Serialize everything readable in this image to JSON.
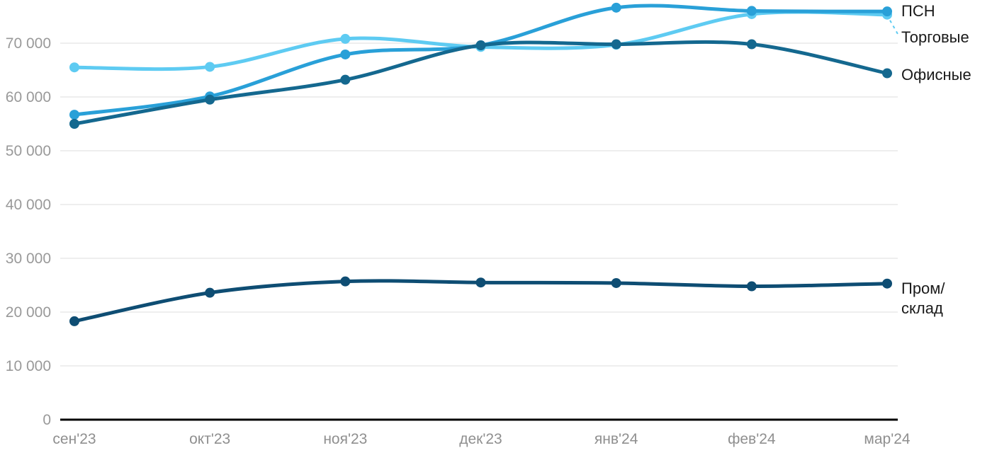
{
  "chart_data": {
    "type": "line",
    "title": "",
    "xlabel": "",
    "ylabel": "",
    "categories": [
      "сен'23",
      "окт'23",
      "ноя'23",
      "дек'23",
      "янв'24",
      "фев'24",
      "мар'24"
    ],
    "series": [
      {
        "name": "ПСН",
        "color": "#29a0d8",
        "legend_lines": [
          "ПСН"
        ],
        "values": [
          56700,
          60100,
          67900,
          69600,
          76600,
          76000,
          75900
        ]
      },
      {
        "name": "Торговые",
        "color": "#5ecbf2",
        "legend_lines": [
          "Торговые"
        ],
        "values": [
          65500,
          65600,
          70800,
          69300,
          69700,
          75400,
          75300
        ]
      },
      {
        "name": "Офисные",
        "color": "#14688f",
        "legend_lines": [
          "Офисные"
        ],
        "values": [
          55000,
          59500,
          63200,
          69600,
          69800,
          69800,
          64400
        ]
      },
      {
        "name": "Пром/склад",
        "color": "#0e4d73",
        "legend_lines": [
          "Пром/",
          "склад"
        ],
        "values": [
          18300,
          23600,
          25700,
          25500,
          25400,
          24800,
          25300
        ]
      }
    ],
    "yticks": {
      "values": [
        0,
        10000,
        20000,
        30000,
        40000,
        50000,
        60000,
        70000
      ],
      "labels": [
        "0",
        "10 000",
        "20 000",
        "30 000",
        "40 000",
        "50 000",
        "60 000",
        "70 000"
      ]
    },
    "ylim": [
      0,
      80000
    ],
    "grid": true,
    "legend_position": "right"
  },
  "colors": {
    "background": "#ffffff",
    "gridline": "#e8e8e8",
    "axis_line": "#000000",
    "y_tick_label": "#999999",
    "x_tick_label": "#8f8f8f",
    "legend_text": "#1a1a1a"
  }
}
